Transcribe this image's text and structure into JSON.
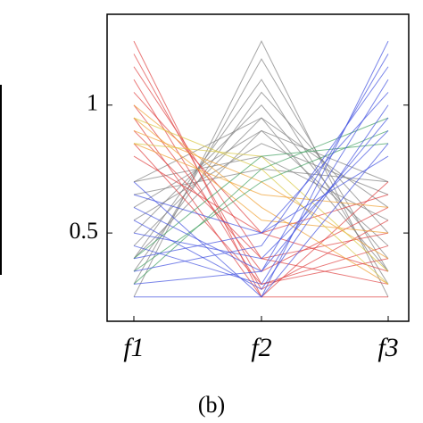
{
  "chart_data": {
    "type": "parallel",
    "categories": [
      "f1",
      "f2",
      "f3"
    ],
    "ylim": [
      0.155,
      1.355
    ],
    "yticks": [
      0.5,
      1
    ],
    "caption": "(b)",
    "series": [
      {
        "color": "#808080",
        "lines": [
          [
            0.25,
            1.25,
            0.25
          ],
          [
            0.3,
            1.18,
            0.35
          ],
          [
            0.4,
            1.1,
            0.3
          ],
          [
            0.35,
            1.05,
            0.5
          ],
          [
            0.5,
            1.0,
            0.4
          ],
          [
            0.45,
            0.95,
            0.6
          ],
          [
            0.6,
            0.9,
            0.45
          ],
          [
            0.55,
            0.85,
            0.65
          ],
          [
            0.7,
            0.8,
            0.55
          ],
          [
            0.65,
            0.75,
            0.7
          ],
          [
            0.4,
            0.9,
            0.7
          ],
          [
            0.7,
            0.95,
            0.35
          ]
        ]
      },
      {
        "color": "#e04040",
        "lines": [
          [
            1.25,
            0.25,
            0.25
          ],
          [
            1.2,
            0.3,
            0.4
          ],
          [
            1.1,
            0.28,
            0.55
          ],
          [
            1.0,
            0.35,
            0.6
          ],
          [
            0.95,
            0.25,
            0.7
          ],
          [
            0.9,
            0.4,
            0.5
          ],
          [
            0.85,
            0.3,
            0.45
          ],
          [
            1.15,
            0.4,
            0.3
          ],
          [
            0.8,
            0.5,
            0.65
          ],
          [
            1.05,
            0.5,
            0.35
          ]
        ]
      },
      {
        "color": "#f0a030",
        "lines": [
          [
            1.0,
            0.6,
            0.3
          ],
          [
            0.9,
            0.7,
            0.4
          ],
          [
            0.95,
            0.55,
            0.5
          ],
          [
            0.85,
            0.65,
            0.6
          ]
        ]
      },
      {
        "color": "#d8c840",
        "lines": [
          [
            0.95,
            0.75,
            0.3
          ],
          [
            0.85,
            0.8,
            0.35
          ]
        ]
      },
      {
        "color": "#40a060",
        "lines": [
          [
            0.3,
            0.75,
            0.95
          ],
          [
            0.35,
            0.7,
            0.9
          ],
          [
            0.4,
            0.8,
            0.85
          ]
        ]
      },
      {
        "color": "#4050e0",
        "lines": [
          [
            0.25,
            0.25,
            1.25
          ],
          [
            0.3,
            0.35,
            1.2
          ],
          [
            0.45,
            0.3,
            1.1
          ],
          [
            0.55,
            0.28,
            1.0
          ],
          [
            0.6,
            0.35,
            0.95
          ],
          [
            0.5,
            0.4,
            0.9
          ],
          [
            0.7,
            0.25,
            0.85
          ],
          [
            0.35,
            0.45,
            1.15
          ],
          [
            0.65,
            0.5,
            0.8
          ],
          [
            0.4,
            0.5,
            1.05
          ]
        ]
      }
    ]
  }
}
